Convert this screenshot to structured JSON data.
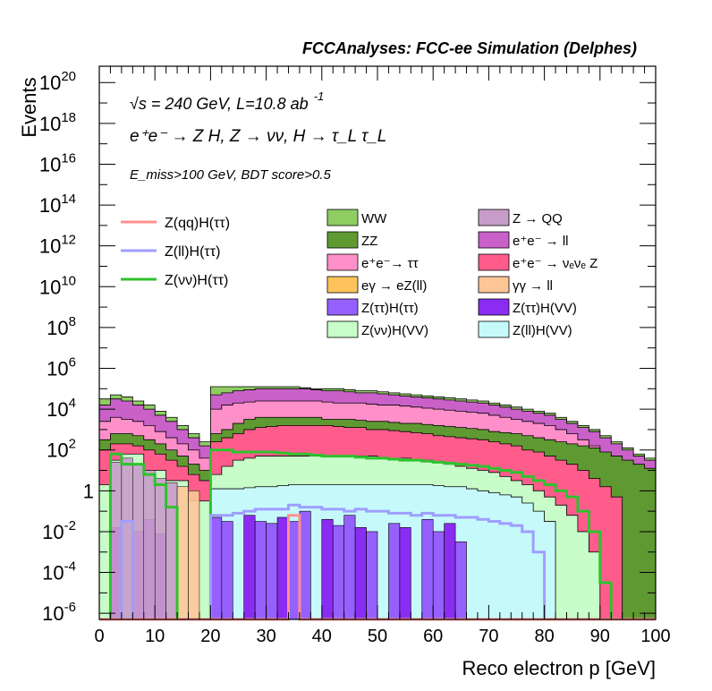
{
  "chart_data": {
    "type": "stacked-step-histogram",
    "title": "FCCAnalyses: FCC-ee Simulation (Delphes)",
    "xlabel": "Reco electron p [GeV]",
    "ylabel": "Events",
    "xlim": [
      0,
      100
    ],
    "ylim_log10": [
      -6.3,
      20.8
    ],
    "yscale": "log",
    "xticks": [
      0,
      10,
      20,
      30,
      40,
      50,
      60,
      70,
      80,
      90,
      100
    ],
    "yticks": [
      {
        "exp": -6,
        "label": "10",
        "sup": "-6"
      },
      {
        "exp": -4,
        "label": "10",
        "sup": "-4"
      },
      {
        "exp": -2,
        "label": "10",
        "sup": "-2"
      },
      {
        "exp": 0,
        "label": "1",
        "sup": ""
      },
      {
        "exp": 2,
        "label": "10",
        "sup": "2"
      },
      {
        "exp": 4,
        "label": "10",
        "sup": "4"
      },
      {
        "exp": 6,
        "label": "10",
        "sup": "6"
      },
      {
        "exp": 8,
        "label": "10",
        "sup": "8"
      },
      {
        "exp": 10,
        "label": "10",
        "sup": "10"
      },
      {
        "exp": 12,
        "label": "10",
        "sup": "12"
      },
      {
        "exp": 14,
        "label": "10",
        "sup": "14"
      },
      {
        "exp": 16,
        "label": "10",
        "sup": "16"
      },
      {
        "exp": 18,
        "label": "10",
        "sup": "18"
      },
      {
        "exp": 20,
        "label": "10",
        "sup": "20"
      }
    ],
    "annotations": {
      "line1": "√s = 240 GeV, L=10.8 ab",
      "line1_sup": "-1",
      "line2": "e⁺e⁻ → Z H, Z → νν, H → τ_L τ_L",
      "line3": "E_miss>100 GeV, BDT score>0.5"
    },
    "legend_left": [
      {
        "label": "Z(qq)H(ττ)",
        "color": "#ff8f8f"
      },
      {
        "label": "Z(ll)H(ττ)",
        "color": "#9e9eff"
      },
      {
        "label": "Z(νν)H(ττ)",
        "color": "#2ec22e"
      }
    ],
    "legend_right": [
      {
        "label": "WW",
        "color": "#8fcd62"
      },
      {
        "label": "Z → QQ",
        "color": "#c89cc9"
      },
      {
        "label": "ZZ",
        "color": "#5f9932"
      },
      {
        "label": "e⁺e⁻ → ll",
        "color": "#c961c9"
      },
      {
        "label": "e⁺e⁻→ ττ",
        "color": "#ff8fc9"
      },
      {
        "label": "e⁺e⁻ → νₑνₑ Z",
        "color": "#ff5c8c"
      },
      {
        "label": "eγ → eZ(ll)",
        "color": "#ffc35c"
      },
      {
        "label": "γγ → ll",
        "color": "#fdc697"
      },
      {
        "label": "Z(ττ)H(ττ)",
        "color": "#9660ff"
      },
      {
        "label": "Z(ττ)H(VV)",
        "color": "#8a2cf2"
      },
      {
        "label": "Z(νν)H(VV)",
        "color": "#c8fcc8"
      },
      {
        "label": "Z(ll)H(VV)",
        "color": "#c6fafa"
      }
    ],
    "stack_layers_log10": {
      "bins_gev": [
        0,
        2,
        4,
        6,
        8,
        10,
        12,
        14,
        16,
        18,
        20,
        22,
        24,
        26,
        28,
        30,
        32,
        34,
        36,
        38,
        40,
        42,
        44,
        46,
        48,
        50,
        52,
        54,
        56,
        58,
        60,
        62,
        64,
        66,
        68,
        70,
        72,
        74,
        76,
        78,
        80,
        82,
        84,
        86,
        88,
        90,
        92,
        94,
        96,
        98,
        100
      ],
      "ZllHVV_top": [
        -6.3,
        -6.3,
        -6.3,
        -6.3,
        -6.3,
        -6.3,
        -6.3,
        -6.3,
        -6.3,
        -6.3,
        0.1,
        0.1,
        0.1,
        0.15,
        0.2,
        0.2,
        0.25,
        0.3,
        0.3,
        0.3,
        0.3,
        0.3,
        0.3,
        0.3,
        0.3,
        0.3,
        0.3,
        0.3,
        0.3,
        0.3,
        0.25,
        0.2,
        0.2,
        0.1,
        0.0,
        -0.1,
        -0.2,
        -0.3,
        -0.6,
        -1.0,
        -1.5,
        -6.3,
        -6.3,
        -6.3,
        -6.3,
        -6.3,
        -6.3,
        -6.3,
        -6.3,
        -6.3,
        -6.3
      ],
      "ZvvHVV_top": [
        0.3,
        1.5,
        1.8,
        1.8,
        1.0,
        1.0,
        0.5,
        0.5,
        -0.5,
        -0.5,
        0.8,
        1.2,
        1.5,
        1.6,
        1.7,
        1.7,
        1.7,
        1.7,
        1.7,
        1.7,
        1.7,
        1.7,
        1.7,
        1.7,
        1.7,
        1.6,
        1.6,
        1.6,
        1.5,
        1.5,
        1.4,
        1.3,
        1.2,
        1.1,
        1.0,
        0.9,
        0.7,
        0.5,
        0.3,
        0.0,
        -0.3,
        -0.7,
        -1.2,
        -2.0,
        -3.0,
        -6.3,
        -6.3,
        -6.3,
        -6.3,
        -6.3,
        -6.3
      ],
      "eeZZ_top": [
        2.0,
        2.3,
        2.3,
        2.2,
        2.0,
        1.8,
        1.5,
        1.2,
        0.8,
        0.5,
        2.4,
        2.6,
        2.8,
        3.0,
        3.1,
        3.15,
        3.2,
        3.2,
        3.2,
        3.2,
        3.2,
        3.15,
        3.1,
        3.1,
        3.0,
        3.0,
        2.95,
        2.9,
        2.85,
        2.8,
        2.7,
        2.65,
        2.6,
        2.55,
        2.5,
        2.4,
        2.3,
        2.2,
        2.0,
        1.9,
        1.7,
        1.5,
        1.3,
        1.0,
        0.6,
        0.2,
        -0.3,
        -6.3,
        -6.3,
        -6.3,
        -6.3
      ],
      "ZZ_top": [
        2.5,
        2.8,
        2.8,
        2.7,
        2.5,
        2.3,
        2.0,
        1.7,
        1.3,
        1.0,
        2.8,
        3.0,
        3.3,
        3.5,
        3.6,
        3.6,
        3.6,
        3.6,
        3.6,
        3.6,
        3.5,
        3.5,
        3.5,
        3.45,
        3.4,
        3.4,
        3.35,
        3.3,
        3.3,
        3.25,
        3.2,
        3.15,
        3.1,
        3.05,
        3.0,
        2.9,
        2.85,
        2.8,
        2.7,
        2.6,
        2.5,
        2.4,
        2.3,
        2.2,
        2.1,
        1.9,
        1.7,
        1.5,
        1.3,
        1.1,
        0.9
      ],
      "ee_tautau_top": [
        3.4,
        3.6,
        3.5,
        3.4,
        3.2,
        2.9,
        2.6,
        2.3,
        2.0,
        1.6,
        4.0,
        4.2,
        4.3,
        4.35,
        4.4,
        4.4,
        4.4,
        4.4,
        4.4,
        4.4,
        4.35,
        4.3,
        4.3,
        4.3,
        4.25,
        4.2,
        4.2,
        4.15,
        4.1,
        4.05,
        4.0,
        3.95,
        3.9,
        3.85,
        3.8,
        3.7,
        3.6,
        3.5,
        3.4,
        3.3,
        3.2,
        3.0,
        2.8,
        2.5,
        2.2,
        1.8,
        1.4,
        1.0,
        0.7,
        0.5,
        0.3
      ],
      "ee_ll_top": [
        4.2,
        4.5,
        4.4,
        4.2,
        4.0,
        3.7,
        3.4,
        3.0,
        2.6,
        2.2,
        4.7,
        4.8,
        4.9,
        4.95,
        5.0,
        5.0,
        5.0,
        5.0,
        5.0,
        4.95,
        4.9,
        4.9,
        4.85,
        4.8,
        4.8,
        4.75,
        4.7,
        4.65,
        4.6,
        4.55,
        4.5,
        4.45,
        4.4,
        4.35,
        4.3,
        4.2,
        4.1,
        4.0,
        3.9,
        3.8,
        3.7,
        3.5,
        3.3,
        3.1,
        2.9,
        2.6,
        2.3,
        2.0,
        1.7,
        1.5,
        1.3
      ],
      "WW_top": [
        4.5,
        4.7,
        4.6,
        4.4,
        4.2,
        3.9,
        3.6,
        3.2,
        2.8,
        2.4,
        5.1,
        5.1,
        5.1,
        5.1,
        5.1,
        5.1,
        5.1,
        5.1,
        5.05,
        5.0,
        5.0,
        5.0,
        4.95,
        4.9,
        4.9,
        4.85,
        4.8,
        4.75,
        4.7,
        4.65,
        4.6,
        4.55,
        4.5,
        4.45,
        4.4,
        4.3,
        4.2,
        4.1,
        4.0,
        3.9,
        3.8,
        3.6,
        3.4,
        3.2,
        3.0,
        2.7,
        2.4,
        2.1,
        1.8,
        1.6,
        1.4
      ]
    },
    "signal_lines_log10": {
      "ZvvHtautau": [
        -6.3,
        1.8,
        1.3,
        1.3,
        0.8,
        0.3,
        -0.8,
        -6.3,
        -6.3,
        -6.3,
        2.0,
        2.0,
        1.9,
        1.9,
        1.9,
        1.9,
        1.85,
        1.8,
        1.8,
        1.75,
        1.7,
        1.7,
        1.7,
        1.65,
        1.6,
        1.6,
        1.55,
        1.5,
        1.5,
        1.45,
        1.4,
        1.35,
        1.3,
        1.25,
        1.2,
        1.1,
        1.0,
        0.9,
        0.7,
        0.5,
        0.3,
        0.0,
        -0.3,
        -1.0,
        -2.0,
        -4.5,
        -6.3,
        -6.3,
        -6.3,
        -6.3,
        -6.3
      ],
      "ZllHtautau": [
        -6.3,
        -6.3,
        -1.5,
        -6.3,
        -6.3,
        -6.3,
        -6.3,
        -6.3,
        -6.3,
        -6.3,
        -1.2,
        -1.2,
        -1.1,
        -1.0,
        -0.9,
        -0.9,
        -0.9,
        -0.7,
        -0.8,
        -0.8,
        -0.9,
        -0.9,
        -1.0,
        -0.9,
        -1.0,
        -1.0,
        -1.1,
        -1.1,
        -1.2,
        -1.1,
        -1.2,
        -1.2,
        -1.3,
        -1.3,
        -1.4,
        -1.5,
        -1.6,
        -1.7,
        -2.0,
        -3.0,
        -6.3,
        -6.3,
        -6.3,
        -6.3,
        -6.3,
        -6.3,
        -6.3,
        -6.3,
        -6.3,
        -6.3,
        -6.3
      ],
      "ZqqHtautau": [
        -6.3,
        -6.3,
        -6.3,
        -6.3,
        -6.3,
        -6.3,
        -6.3,
        -6.3,
        -6.3,
        -6.3,
        -6.3,
        -6.3,
        -6.3,
        -6.3,
        -6.3,
        -6.3,
        -6.3,
        -1.2,
        -6.3,
        -6.3,
        -6.3,
        -6.3,
        -6.3,
        -6.3,
        -6.3,
        -6.3,
        -6.3,
        -6.3,
        -6.3,
        -6.3,
        -6.3,
        -6.3,
        -6.3,
        -6.3,
        -6.3,
        -6.3,
        -6.3,
        -6.3,
        -6.3,
        -6.3,
        -6.3,
        -6.3,
        -6.3,
        -6.3,
        -6.3,
        -6.3,
        -6.3,
        -6.3,
        -6.3,
        -6.3,
        -6.3
      ]
    }
  }
}
